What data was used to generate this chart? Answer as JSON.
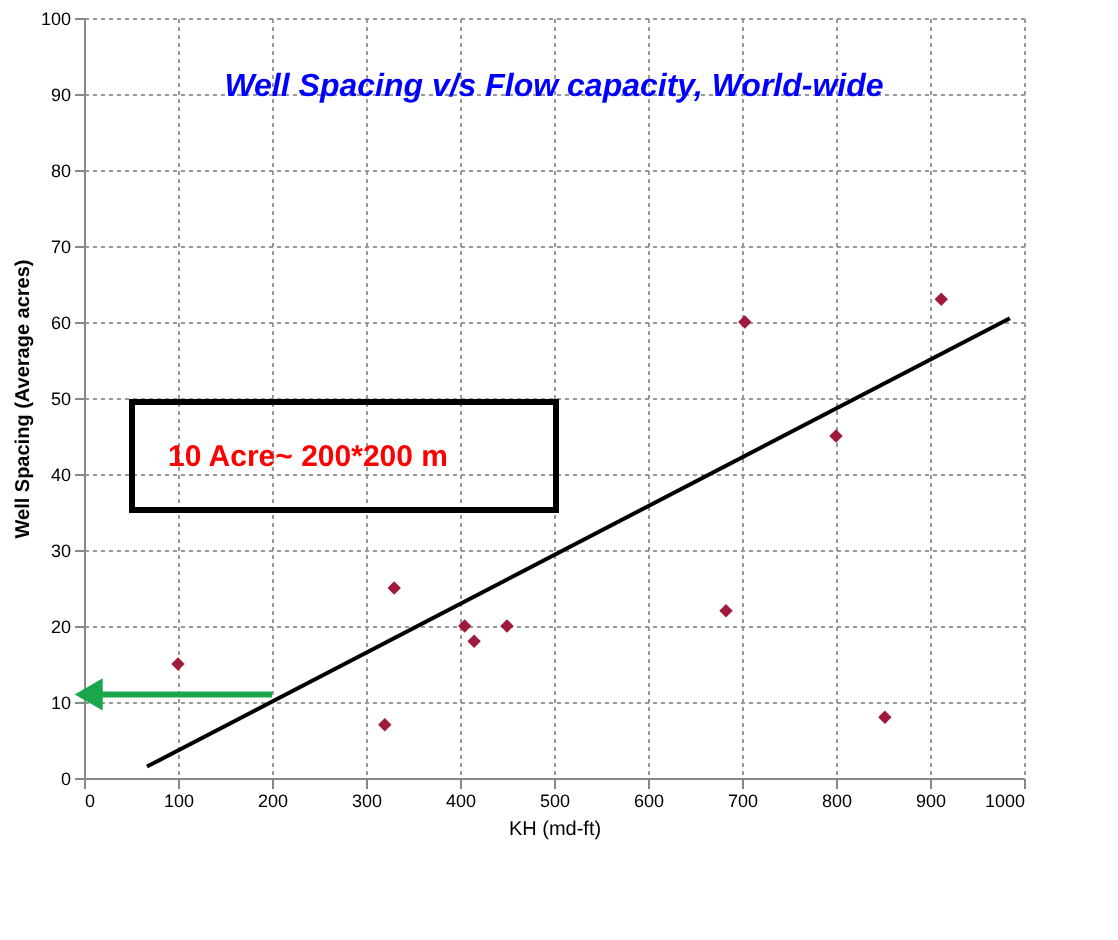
{
  "chart_data": {
    "type": "scatter",
    "title": "Well Spacing v/s Flow capacity, World-wide",
    "xlabel": "KH (md-ft)",
    "ylabel": "Well Spacing (Average acres)",
    "xlim": [
      0,
      1000
    ],
    "ylim": [
      0,
      100
    ],
    "xticks": [
      0,
      100,
      200,
      300,
      400,
      500,
      600,
      700,
      800,
      900,
      1000
    ],
    "yticks": [
      0,
      10,
      20,
      30,
      40,
      50,
      60,
      70,
      80,
      90,
      100
    ],
    "grid": true,
    "marker": "diamond",
    "series": [
      {
        "color": "#9e1b3c",
        "x": [
          100,
          320,
          330,
          405,
          415,
          450,
          683,
          703,
          800,
          852,
          912
        ],
        "values": [
          15,
          7,
          25,
          20,
          18,
          20,
          22,
          60,
          45,
          8,
          63
        ]
      },
      {
        "type": "line",
        "color": "#000000",
        "marker": "none",
        "x": [
          67,
          985
        ],
        "values": [
          1.5,
          60.5
        ]
      },
      {
        "type": "line",
        "color": "#1aa64a",
        "marker": "triangle",
        "x": [
          200,
          5
        ],
        "values": [
          11,
          11
        ]
      }
    ],
    "annotations": [
      "10 Acre~ 200*200 m"
    ]
  }
}
